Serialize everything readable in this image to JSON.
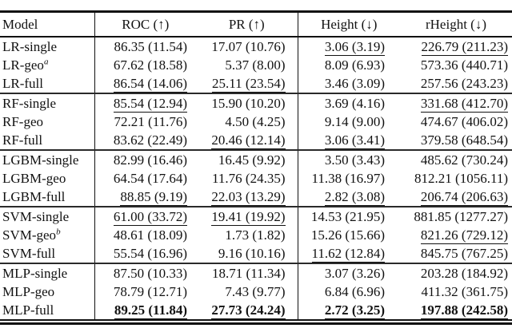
{
  "caption_fragment": "· ·· · ··· · · ·· ·· · · ··· ·· · ·· · ·· ·· ··· · ·· · · ·· ·· ·· · ··· · ·· ·· · · ··",
  "colors": {
    "text": "#111111",
    "rule": "#111111"
  },
  "table": {
    "headers": [
      {
        "label": "Model"
      },
      {
        "label": "ROC (↑)"
      },
      {
        "label": "PR (↑)"
      },
      {
        "label": "Height (↓)"
      },
      {
        "label": "rHeight (↓)"
      }
    ],
    "groups": [
      {
        "rows": [
          {
            "model": "LR-single",
            "sup": "",
            "cells": [
              {
                "v": "86.35 (11.54)"
              },
              {
                "v": "17.07 (10.76)"
              },
              {
                "v": "3.06 (3.19)",
                "u": true
              },
              {
                "v": "226.79 (211.23)",
                "u": true
              }
            ]
          },
          {
            "model": "LR-geo",
            "sup": "a",
            "cells": [
              {
                "v": "67.62 (18.58)"
              },
              {
                "v": "5.37 (8.00)"
              },
              {
                "v": "8.09 (6.93)"
              },
              {
                "v": "573.36 (440.71)"
              }
            ]
          },
          {
            "model": "LR-full",
            "sup": "",
            "cells": [
              {
                "v": "86.54 (14.06)",
                "u": true
              },
              {
                "v": "25.11 (23.54)",
                "u": true
              },
              {
                "v": "3.46 (3.09)"
              },
              {
                "v": "257.56 (243.23)"
              }
            ]
          }
        ]
      },
      {
        "rows": [
          {
            "model": "RF-single",
            "sup": "",
            "cells": [
              {
                "v": "85.54 (12.94)",
                "u": true
              },
              {
                "v": "15.90 (10.20)"
              },
              {
                "v": "3.69 (4.16)"
              },
              {
                "v": "331.68 (412.70)",
                "u": true
              }
            ]
          },
          {
            "model": "RF-geo",
            "sup": "",
            "cells": [
              {
                "v": "72.21 (11.76)"
              },
              {
                "v": "4.50 (4.25)"
              },
              {
                "v": "9.14 (9.00)"
              },
              {
                "v": "474.67 (406.02)"
              }
            ]
          },
          {
            "model": "RF-full",
            "sup": "",
            "cells": [
              {
                "v": "83.62 (22.49)"
              },
              {
                "v": "20.46 (12.14)",
                "u": true
              },
              {
                "v": "3.06 (3.41)",
                "u": true
              },
              {
                "v": "379.58 (648.54)"
              }
            ]
          }
        ]
      },
      {
        "rows": [
          {
            "model": "LGBM-single",
            "sup": "",
            "cells": [
              {
                "v": "82.99 (16.46)"
              },
              {
                "v": "16.45 (9.92)"
              },
              {
                "v": "3.50 (3.43)"
              },
              {
                "v": "485.62 (730.24)"
              }
            ]
          },
          {
            "model": "LGBM-geo",
            "sup": "",
            "cells": [
              {
                "v": "64.54 (17.64)"
              },
              {
                "v": "11.76 (24.35)"
              },
              {
                "v": "11.38 (16.97)"
              },
              {
                "v": "812.21 (1056.11)"
              }
            ]
          },
          {
            "model": "LGBM-full",
            "sup": "",
            "cells": [
              {
                "v": "88.85 (9.19)",
                "u": true
              },
              {
                "v": "22.03 (13.29)",
                "u": true
              },
              {
                "v": "2.82 (3.08)",
                "u": true
              },
              {
                "v": "206.74 (206.63)",
                "u": true
              }
            ]
          }
        ]
      },
      {
        "rows": [
          {
            "model": "SVM-single",
            "sup": "",
            "cells": [
              {
                "v": "61.00 (33.72)",
                "u": true
              },
              {
                "v": "19.41 (19.92)",
                "u": true
              },
              {
                "v": "14.53 (21.95)"
              },
              {
                "v": "881.85 (1277.27)"
              }
            ]
          },
          {
            "model": "SVM-geo",
            "sup": "b",
            "cells": [
              {
                "v": "48.61 (18.09)"
              },
              {
                "v": "1.73 (1.82)"
              },
              {
                "v": "15.26 (15.66)"
              },
              {
                "v": "821.26 (729.12)",
                "u": true
              }
            ]
          },
          {
            "model": "SVM-full",
            "sup": "",
            "cells": [
              {
                "v": "55.54 (16.96)"
              },
              {
                "v": "9.16 (10.16)"
              },
              {
                "v": "11.62 (12.84)",
                "u": true
              },
              {
                "v": "845.75 (767.25)"
              }
            ]
          }
        ]
      },
      {
        "rows": [
          {
            "model": "MLP-single",
            "sup": "",
            "cells": [
              {
                "v": "87.50 (10.33)"
              },
              {
                "v": "18.71 (11.34)"
              },
              {
                "v": "3.07 (3.26)"
              },
              {
                "v": "203.28 (184.92)"
              }
            ]
          },
          {
            "model": "MLP-geo",
            "sup": "",
            "cells": [
              {
                "v": "78.79 (12.71)"
              },
              {
                "v": "7.43 (9.77)"
              },
              {
                "v": "6.84 (6.96)"
              },
              {
                "v": "411.32 (361.75)"
              }
            ]
          },
          {
            "model": "MLP-full",
            "sup": "",
            "cells": [
              {
                "v": "89.25 (11.84)",
                "u": true,
                "b": true
              },
              {
                "v": "27.73 (24.24)",
                "u": true,
                "b": true
              },
              {
                "v": "2.72 (3.25)",
                "u": true,
                "b": true
              },
              {
                "v": "197.88 (242.58)",
                "u": true,
                "b": true
              }
            ]
          }
        ]
      }
    ]
  }
}
